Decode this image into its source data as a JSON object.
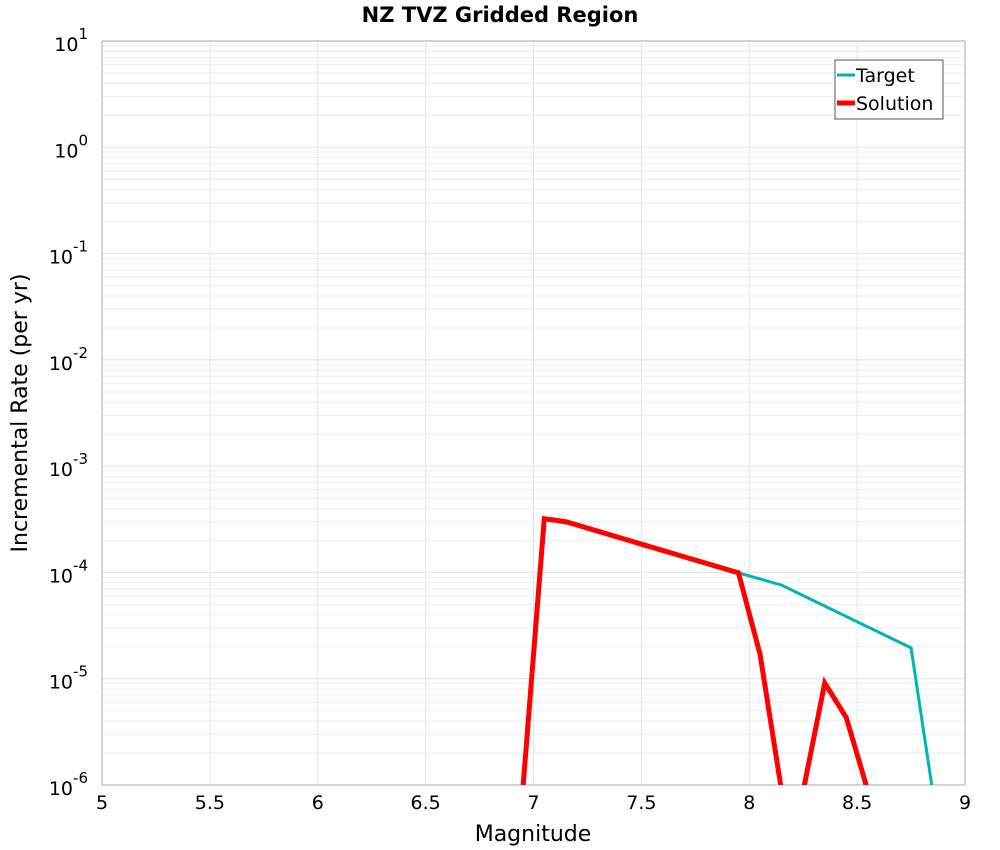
{
  "chart_data": {
    "type": "line",
    "title": "NZ TVZ Gridded Region",
    "xlabel": "Magnitude",
    "ylabel": "Incremental Rate (per yr)",
    "xlim": [
      5,
      9
    ],
    "ylim": [
      1e-06,
      10
    ],
    "yscale": "log",
    "grid": true,
    "legend_position": "top-right",
    "x_ticks": [
      "5",
      "5.5",
      "6",
      "6.5",
      "7",
      "7.5",
      "8",
      "8.5",
      "9"
    ],
    "y_tick_exponents": [
      "1",
      "0",
      "-1",
      "-2",
      "-3",
      "-4",
      "-5",
      "-6"
    ],
    "series": [
      {
        "name": "Target",
        "color": "#00b4b4",
        "x": [
          6.95,
          7.05,
          7.15,
          7.95,
          8.15,
          8.75,
          8.85
        ],
        "y": [
          1e-08,
          0.00032,
          0.0003,
          9.9e-05,
          7.6e-05,
          1.95e-05,
          1e-08
        ]
      },
      {
        "name": "Solution",
        "color": "#ff0000",
        "x": [
          6.95,
          7.05,
          7.15,
          7.95,
          8.05,
          8.15,
          8.25,
          8.35,
          8.45,
          8.55
        ],
        "y": [
          1e-08,
          0.00032,
          0.0003,
          9.9e-05,
          1.7e-05,
          1e-08,
          1e-08,
          9.1e-06,
          4.3e-06,
          1e-08
        ]
      }
    ]
  }
}
